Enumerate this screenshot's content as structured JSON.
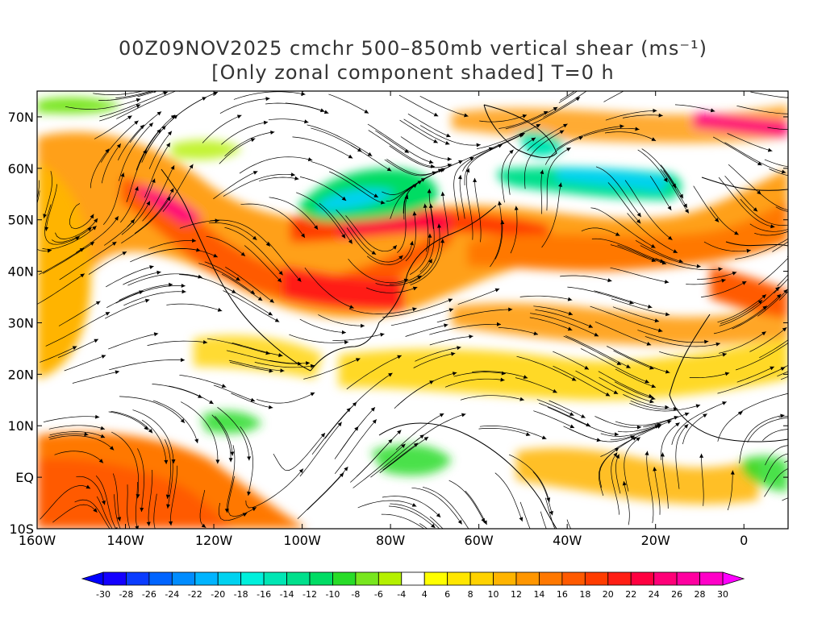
{
  "title_line1": "00Z09NOV2025 cmchr 500–850mb vertical shear (ms⁻¹)",
  "title_line2": "[Only zonal component shaded] T=0 h",
  "lat_labels": [
    "70N",
    "60N",
    "50N",
    "40N",
    "30N",
    "20N",
    "10N",
    "EQ",
    "10S"
  ],
  "lat_values": [
    70,
    60,
    50,
    40,
    30,
    20,
    10,
    0,
    -10
  ],
  "lon_labels": [
    "160W",
    "140W",
    "120W",
    "100W",
    "80W",
    "60W",
    "40W",
    "20W",
    "0"
  ],
  "lon_values": [
    -160,
    -140,
    -120,
    -100,
    -80,
    -60,
    -40,
    -20,
    0
  ],
  "map_extent": {
    "lon_min": -160,
    "lon_max": 10,
    "lat_min": -10,
    "lat_max": 75
  },
  "colorbar": {
    "tick_labels": [
      "-30",
      "-28",
      "-26",
      "-24",
      "-22",
      "-20",
      "-18",
      "-16",
      "-14",
      "-12",
      "-10",
      "-8",
      "-6",
      "-4",
      "4",
      "6",
      "8",
      "10",
      "12",
      "14",
      "16",
      "18",
      "20",
      "22",
      "24",
      "26",
      "28",
      "30"
    ],
    "colors": [
      "#1400ff",
      "#0a3cff",
      "#0064ff",
      "#008cff",
      "#00b4ff",
      "#00d2f0",
      "#00f0dc",
      "#00e6b4",
      "#00e08c",
      "#00dc64",
      "#28dc28",
      "#78e61e",
      "#b4f000",
      "#ffffff",
      "#ffff00",
      "#ffe600",
      "#ffd200",
      "#ffb400",
      "#ff9600",
      "#ff7800",
      "#ff5a00",
      "#ff3c00",
      "#ff1e14",
      "#ff0040",
      "#ff0078",
      "#ff00a0",
      "#ff00c8"
    ],
    "under_color": "#0000ff",
    "over_color": "#ff00ff"
  }
}
